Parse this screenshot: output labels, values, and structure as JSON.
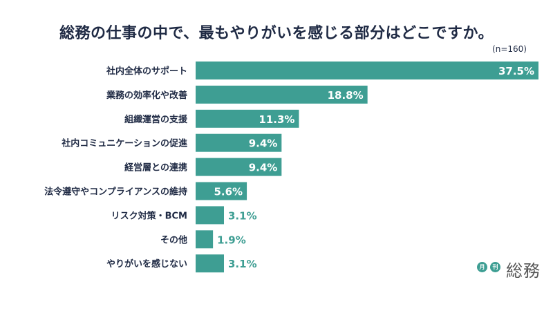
{
  "title": "総務の仕事の中で、最もやりがいを感じる部分はどこですか。",
  "sample_note": "(n=160)",
  "colors": {
    "bar": "#3e9e93",
    "value_outside": "#3e9e93",
    "value_inside": "#ffffff",
    "label": "#1f2a44"
  },
  "logo": {
    "badge1": "月",
    "badge2": "刊",
    "name": "総務"
  },
  "chart_data": {
    "type": "bar",
    "orientation": "horizontal",
    "categories": [
      "社内全体のサポート",
      "業務の効率化や改善",
      "組織運営の支援",
      "社内コミュニケーションの促進",
      "経営層との連携",
      "法令遵守やコンプライアンスの維持",
      "リスク対策・BCM",
      "その他",
      "やりがいを感じない"
    ],
    "values": [
      37.5,
      18.8,
      11.3,
      9.4,
      9.4,
      5.6,
      3.1,
      1.9,
      3.1
    ],
    "value_labels": [
      "37.5%",
      "18.8%",
      "11.3%",
      "9.4%",
      "9.4%",
      "5.6%",
      "3.1%",
      "1.9%",
      "3.1%"
    ],
    "xlim": [
      0,
      37.5
    ],
    "unit": "%"
  }
}
